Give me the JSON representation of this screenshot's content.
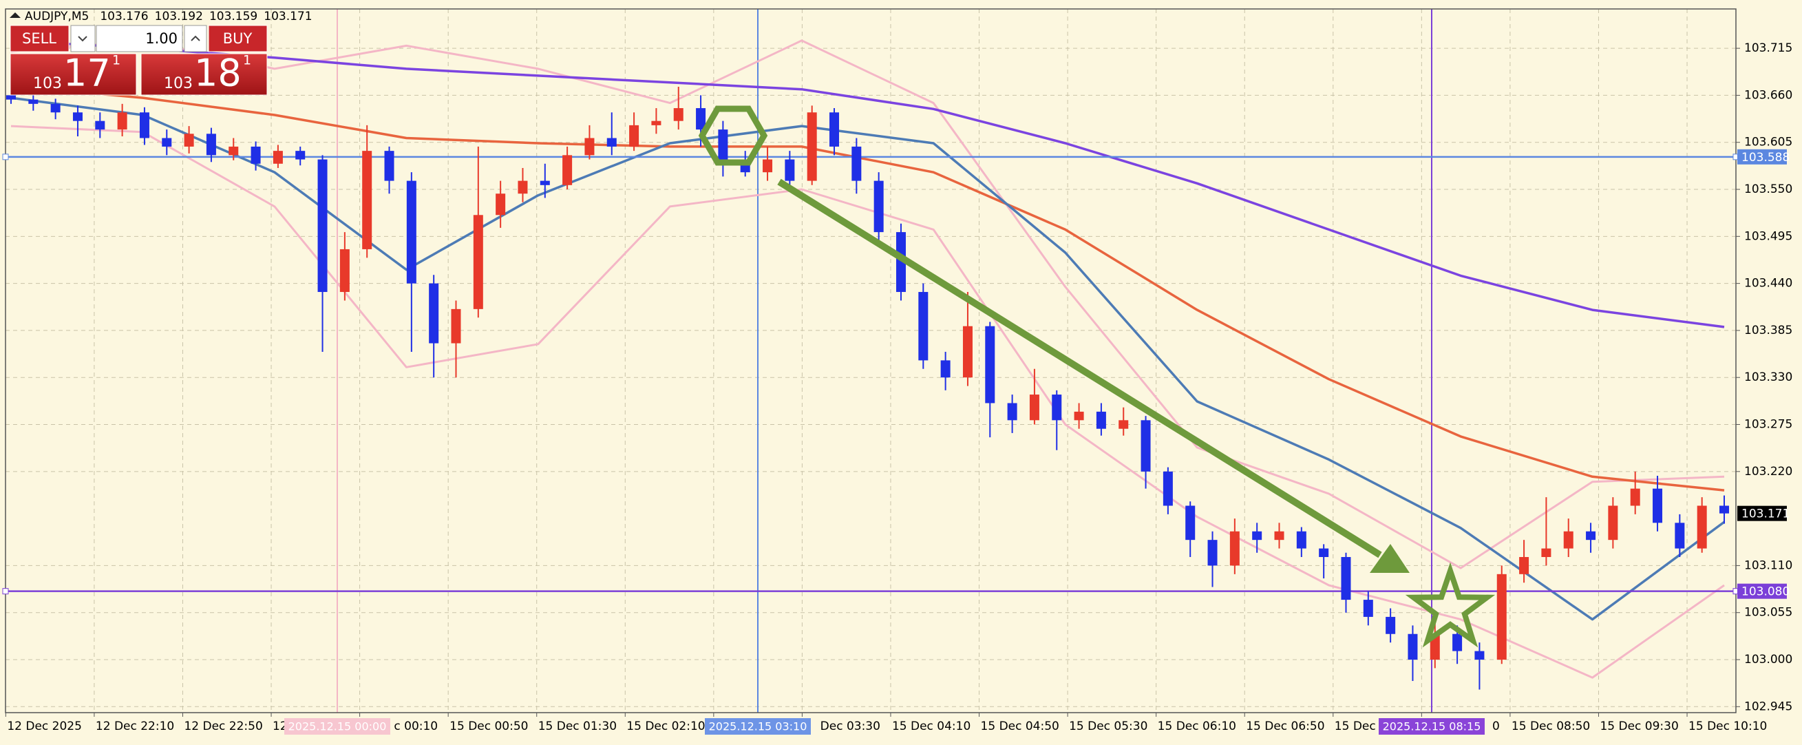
{
  "chart_data": {
    "type": "candlestick",
    "title": "AUDJPY,M5",
    "header_prices": [
      103.176,
      103.192,
      103.159,
      103.171
    ],
    "open": [
      103.66,
      103.655,
      103.65,
      103.64,
      103.63,
      103.62,
      103.64,
      103.61,
      103.6,
      103.615,
      103.59,
      103.6,
      103.58,
      103.595,
      103.585,
      103.43,
      103.48,
      103.595,
      103.56,
      103.44,
      103.37,
      103.41,
      103.52,
      103.545,
      103.56,
      103.555,
      103.59,
      103.61,
      103.6,
      103.625,
      103.63,
      103.645,
      103.62,
      103.58,
      103.57,
      103.585,
      103.56,
      103.64,
      103.6,
      103.56,
      103.5,
      103.43,
      103.35,
      103.33,
      103.39,
      103.3,
      103.28,
      103.31,
      103.28,
      103.29,
      103.27,
      103.28,
      103.22,
      103.18,
      103.14,
      103.11,
      103.15,
      103.14,
      103.15,
      103.13,
      103.12,
      103.07,
      103.05,
      103.03,
      103.0,
      103.03,
      103.01,
      103.0,
      103.1,
      103.12,
      103.13,
      103.15,
      103.14,
      103.18,
      103.2,
      103.16,
      103.13,
      103.18
    ],
    "high": [
      103.668,
      103.662,
      103.656,
      103.648,
      103.64,
      103.65,
      103.646,
      103.62,
      103.624,
      103.622,
      103.61,
      103.606,
      103.602,
      103.6,
      103.59,
      103.5,
      103.625,
      103.6,
      103.57,
      103.45,
      103.42,
      103.6,
      103.56,
      103.575,
      103.58,
      103.6,
      103.625,
      103.64,
      103.64,
      103.645,
      103.67,
      103.66,
      103.63,
      103.595,
      103.6,
      103.595,
      103.648,
      103.645,
      103.61,
      103.57,
      103.51,
      103.44,
      103.36,
      103.43,
      103.395,
      103.31,
      103.34,
      103.315,
      103.3,
      103.3,
      103.295,
      103.285,
      103.225,
      103.185,
      103.15,
      103.165,
      103.16,
      103.16,
      103.155,
      103.135,
      103.125,
      103.08,
      103.06,
      103.04,
      103.045,
      103.04,
      103.02,
      103.11,
      103.14,
      103.19,
      103.165,
      103.16,
      103.19,
      103.22,
      103.215,
      103.17,
      103.19,
      103.192
    ],
    "low": [
      103.65,
      103.642,
      103.632,
      103.612,
      103.61,
      103.612,
      103.602,
      103.59,
      103.592,
      103.582,
      103.584,
      103.572,
      103.575,
      103.578,
      103.36,
      103.42,
      103.47,
      103.545,
      103.36,
      103.33,
      103.33,
      103.4,
      103.505,
      103.535,
      103.54,
      103.55,
      103.585,
      103.59,
      103.595,
      103.615,
      103.62,
      103.6,
      103.565,
      103.565,
      103.56,
      103.55,
      103.555,
      103.59,
      103.545,
      103.49,
      103.42,
      103.34,
      103.315,
      103.32,
      103.26,
      103.265,
      103.275,
      103.245,
      103.27,
      103.262,
      103.262,
      103.2,
      103.17,
      103.12,
      103.085,
      103.1,
      103.125,
      103.13,
      103.12,
      103.095,
      103.055,
      103.04,
      103.02,
      102.975,
      102.99,
      102.995,
      102.965,
      102.995,
      103.09,
      103.11,
      103.12,
      103.125,
      103.13,
      103.17,
      103.15,
      103.12,
      103.125,
      103.159
    ],
    "close": [
      103.655,
      103.65,
      103.64,
      103.63,
      103.62,
      103.64,
      103.61,
      103.6,
      103.615,
      103.59,
      103.6,
      103.58,
      103.595,
      103.585,
      103.43,
      103.48,
      103.595,
      103.56,
      103.44,
      103.37,
      103.41,
      103.52,
      103.545,
      103.56,
      103.555,
      103.59,
      103.61,
      103.6,
      103.625,
      103.63,
      103.645,
      103.62,
      103.58,
      103.57,
      103.585,
      103.56,
      103.64,
      103.6,
      103.56,
      103.5,
      103.43,
      103.35,
      103.33,
      103.39,
      103.3,
      103.28,
      103.31,
      103.28,
      103.29,
      103.27,
      103.28,
      103.22,
      103.18,
      103.14,
      103.11,
      103.15,
      103.14,
      103.15,
      103.13,
      103.12,
      103.07,
      103.05,
      103.03,
      103.0,
      103.03,
      103.01,
      103.0,
      103.1,
      103.12,
      103.13,
      103.15,
      103.14,
      103.18,
      103.2,
      103.16,
      103.13,
      103.18,
      103.171
    ],
    "up_color": "#e8392a",
    "down_color": "#1f2fe6",
    "indicators": [
      {
        "color": "#f4b6c6",
        "values": [
          103.711,
          103.724,
          103.691,
          103.718,
          103.691,
          103.651,
          103.724,
          103.651,
          103.436,
          103.248,
          103.194,
          103.107,
          103.208,
          103.214
        ]
      },
      {
        "color": "#f4b6c6",
        "values": [
          103.624,
          103.617,
          103.53,
          103.342,
          103.369,
          103.53,
          103.55,
          103.503,
          103.275,
          103.167,
          103.087,
          103.047,
          102.979,
          103.087
        ]
      },
      {
        "color": "#7b44e0",
        "values": [
          103.724,
          103.715,
          103.704,
          103.691,
          103.683,
          103.675,
          103.667,
          103.644,
          103.604,
          103.557,
          103.503,
          103.449,
          103.409,
          103.389
        ]
      },
      {
        "color": "#e8643e",
        "values": [
          103.671,
          103.657,
          103.637,
          103.61,
          103.604,
          103.6,
          103.6,
          103.57,
          103.503,
          103.409,
          103.328,
          103.261,
          103.214,
          103.198
        ]
      },
      {
        "color": "#4d7bb5",
        "values": [
          103.657,
          103.637,
          103.57,
          103.456,
          103.543,
          103.604,
          103.624,
          103.604,
          103.476,
          103.302,
          103.234,
          103.154,
          103.047,
          103.161
        ]
      }
    ],
    "ylim": [
      102.938,
      103.761
    ],
    "yticks": [
      102.945,
      {
        "value": 103.0,
        "label": "103.000"
      },
      103.055,
      {
        "value": 103.11,
        "label": "103.110"
      },
      {
        "value": 103.22,
        "label": "103.220"
      },
      103.275,
      {
        "value": 103.33,
        "label": "103.330"
      },
      103.385,
      {
        "value": 103.44,
        "label": "103.440"
      },
      103.495,
      {
        "value": 103.55,
        "label": "103.550"
      },
      103.605,
      {
        "value": 103.66,
        "label": "103.660"
      },
      103.715
    ],
    "xtick_labels": [
      "12 Dec 2025",
      "12 Dec 22:10",
      "12 Dec 22:50",
      "12",
      "c 00:10",
      "15 Dec 00:50",
      "15 Dec 01:30",
      "15 Dec 02:10",
      null,
      "Dec 03:30",
      "15 Dec 04:10",
      "15 Dec 04:50",
      "15 Dec 05:30",
      "15 Dec 06:10",
      "15 Dec 06:50",
      "15 Dec 0",
      "0",
      "15 Dec 08:50",
      "15 Dec 09:30",
      "15 Dec 10:10"
    ],
    "grid": true,
    "hlines": [
      {
        "value": 103.588,
        "color": "#5b87e0"
      },
      {
        "value": 103.08,
        "label": "103.080",
        "color": "#7b3fd8"
      }
    ],
    "current_price": 103.171,
    "vlines": [
      {
        "label": "2025.12.15 00:00",
        "color": "#f4b6c6"
      },
      {
        "label": "2025.12.15 03:10",
        "color": "#5b87e0"
      },
      {
        "label": "2025.12.15 08:15",
        "color": "#7b3fd8"
      }
    ]
  },
  "trade_panel": {
    "sell": "SELL",
    "buy": "BUY",
    "lot": "1.00",
    "bid": {
      "big": "103",
      "main": "17",
      "pip": "1"
    },
    "ask": {
      "big": "103",
      "main": "18",
      "pip": "1"
    }
  }
}
